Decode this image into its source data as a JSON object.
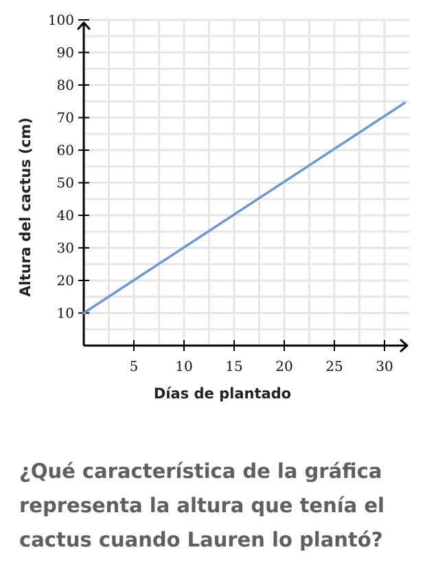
{
  "chart_data": {
    "type": "line",
    "xlabel": "Días de plantado",
    "ylabel": "Altura del cactus (cm)",
    "xlim": [
      0,
      32
    ],
    "ylim": [
      0,
      100
    ],
    "x_ticks": [
      5,
      10,
      15,
      20,
      25,
      30
    ],
    "y_ticks": [
      10,
      20,
      30,
      40,
      50,
      60,
      70,
      80,
      90,
      100
    ],
    "grid": true,
    "series": [
      {
        "color": "#6f96cf",
        "x": [
          0,
          32
        ],
        "y": [
          10,
          74.5
        ]
      }
    ]
  },
  "question": "¿Qué característica de la gráfica representa la altura que tenía el cactus cuando Lauren lo plantó?"
}
